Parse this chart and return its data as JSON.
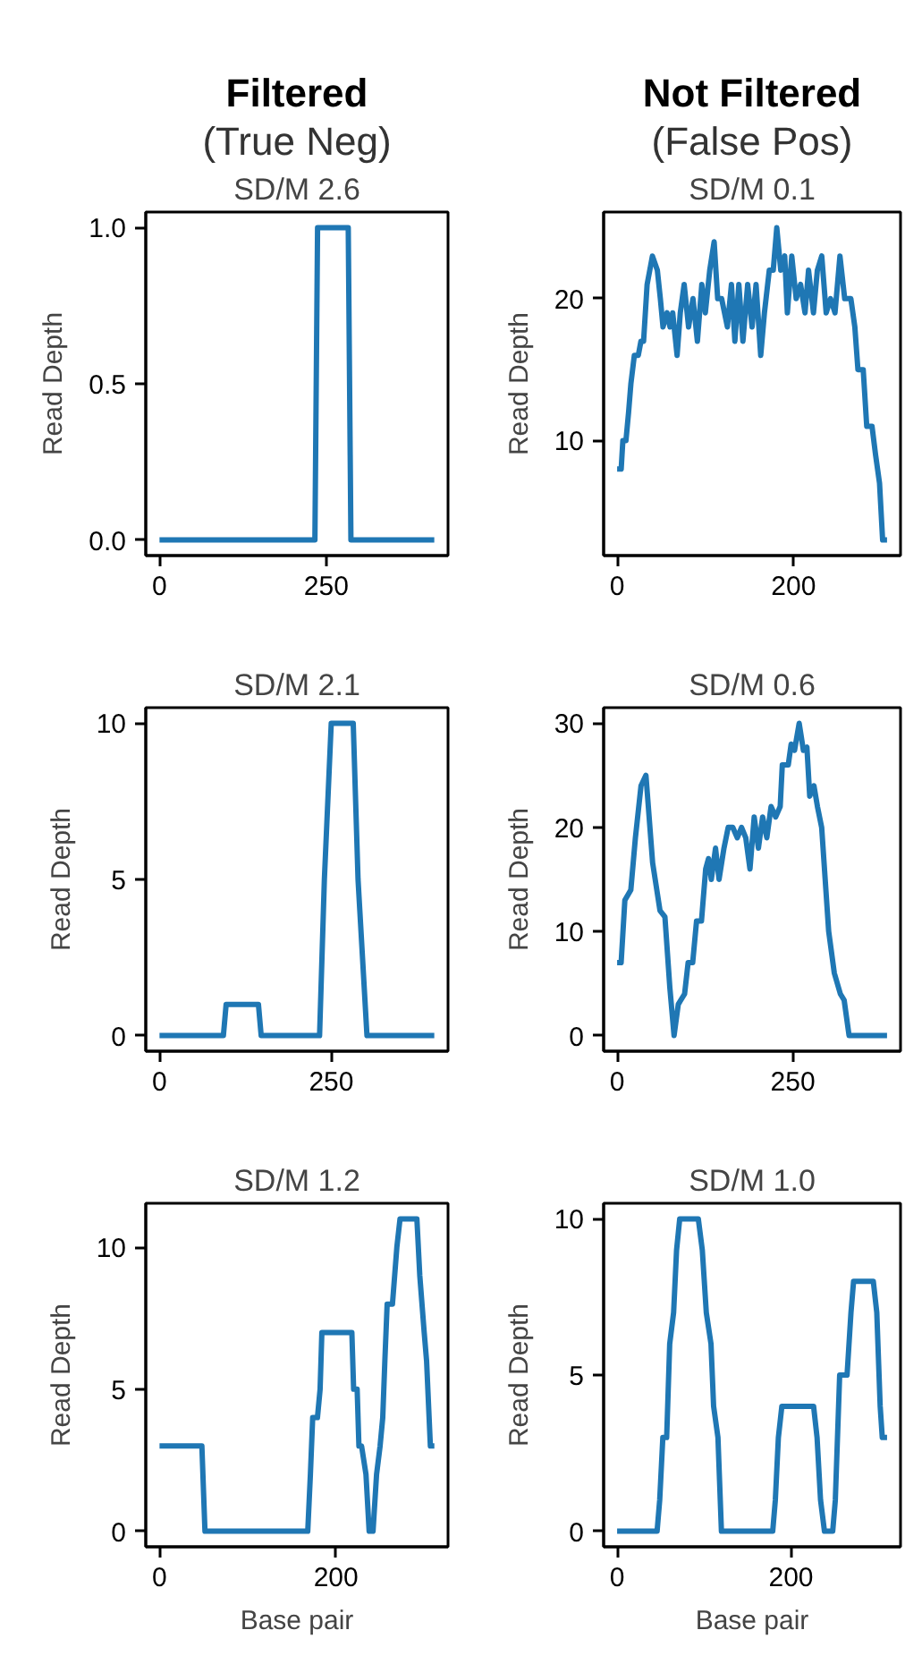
{
  "chart_data": [
    {
      "type": "line",
      "annotations": [
        "Filtered",
        "(True Neg)"
      ],
      "title": "SD/M 2.6",
      "ylabel": "Read Depth",
      "color": "#1f77b4",
      "x": [
        0,
        233,
        237,
        283,
        287,
        412
      ],
      "values": [
        0,
        0,
        1,
        1,
        0,
        0
      ],
      "xlim": [
        -20.6,
        432.6
      ],
      "ylim": [
        -0.05,
        1.05
      ],
      "xticks": [
        0,
        250
      ],
      "yticks": [
        {
          "value": 0,
          "label": "0.0"
        },
        {
          "value": 0.5,
          "label": "0.5"
        },
        {
          "value": 1,
          "label": "1.0"
        }
      ]
    },
    {
      "type": "line",
      "annotations": [
        "Not Filtered",
        "(False Pos)"
      ],
      "title": "SD/M 0.1",
      "ylabel": "Read Depth",
      "color": "#1f77b4",
      "x": [
        0,
        4.6,
        6.5,
        10,
        13,
        15.6,
        19.5,
        24,
        27,
        30,
        34,
        40,
        45.6,
        49,
        52,
        56.6,
        60,
        63,
        68,
        71.6,
        76,
        81,
        86,
        91,
        96,
        100,
        105,
        110,
        114,
        118.5,
        125,
        129.6,
        133.5,
        138,
        142.6,
        148,
        153,
        157.5,
        162.8,
        167,
        172.5,
        177,
        181,
        185.5,
        190,
        193,
        198,
        203,
        208,
        213,
        217,
        222.6,
        227,
        232,
        237,
        242,
        247,
        252.6,
        258,
        265,
        269.5,
        273,
        279,
        283,
        289,
        293,
        297.5,
        301,
        306
      ],
      "values": [
        8,
        8,
        10,
        10,
        12,
        14,
        16,
        16,
        17,
        17,
        21,
        23,
        22,
        20,
        18,
        19,
        18,
        19,
        16,
        19,
        21,
        18,
        20,
        17,
        21,
        19,
        22,
        24,
        20,
        20,
        18,
        21,
        17,
        21,
        17,
        21,
        18,
        21,
        16,
        19,
        22,
        22,
        25,
        22,
        23,
        19,
        23,
        20,
        21,
        19,
        22,
        19,
        22,
        23,
        19,
        20,
        19,
        23,
        20,
        20,
        18,
        15,
        15,
        11,
        11,
        9,
        7,
        3,
        3
      ],
      "xlim": [
        -15.3,
        321.3
      ],
      "ylim": [
        1.9,
        26.1
      ],
      "xticks": [
        0,
        200
      ],
      "yticks": [
        10,
        20
      ]
    },
    {
      "type": "line",
      "title": "SD/M 2.1",
      "ylabel": "Read Depth",
      "color": "#1f77b4",
      "x": [
        0,
        93,
        97,
        144,
        148,
        233,
        240,
        250,
        282,
        289,
        302,
        400
      ],
      "values": [
        0,
        0,
        1,
        1,
        0,
        0,
        5,
        10,
        10,
        5,
        0,
        0
      ],
      "xlim": [
        -20,
        420
      ],
      "ylim": [
        -0.5,
        10.5
      ],
      "xticks": [
        0,
        250
      ],
      "yticks": [
        0,
        5,
        10
      ]
    },
    {
      "type": "line",
      "title": "SD/M 0.6",
      "ylabel": "Read Depth",
      "color": "#1f77b4",
      "x": [
        0,
        5.7,
        11,
        19.5,
        26,
        34,
        41,
        50.5,
        61,
        68,
        75,
        81,
        87,
        96,
        101,
        107.5,
        113,
        120,
        126,
        130,
        134,
        140,
        145,
        152,
        158,
        164.5,
        171,
        177,
        183,
        189,
        195,
        201,
        207,
        213,
        219,
        225.6,
        232,
        235,
        243.5,
        247.6,
        252.4,
        259,
        265,
        270,
        274,
        280,
        285,
        291,
        301,
        309,
        317.6,
        323,
        330,
        384
      ],
      "values": [
        7,
        7,
        13,
        14,
        19,
        24,
        25,
        16.6,
        12,
        11.4,
        4.6,
        0,
        3,
        4,
        7,
        7,
        11,
        11,
        16,
        17,
        15,
        18,
        15,
        18,
        20,
        20,
        19,
        20,
        19,
        16,
        21,
        18,
        21,
        19,
        22,
        21,
        22,
        26,
        26,
        28,
        27.4,
        30,
        27.4,
        27.7,
        23,
        24,
        22,
        20,
        10,
        6,
        4,
        3.4,
        0,
        0
      ],
      "xlim": [
        -19.2,
        403.2
      ],
      "ylim": [
        -1.5,
        31.5
      ],
      "xticks": [
        0,
        250
      ],
      "yticks": [
        0,
        10,
        20,
        30
      ]
    },
    {
      "type": "line",
      "title": "SD/M 1.2",
      "xlabel": "Base pair",
      "ylabel": "Read Depth",
      "color": "#1f77b4",
      "x": [
        0,
        48,
        51.5,
        168,
        171,
        173.6,
        179,
        182,
        184,
        218,
        220,
        224,
        226,
        229,
        234,
        237.6,
        242,
        246,
        250,
        253,
        255.4,
        258,
        264,
        269,
        272.6,
        291.7,
        295,
        300,
        302.7,
        307,
        311.5
      ],
      "values": [
        3,
        3,
        0,
        0,
        2,
        4,
        4,
        5,
        7,
        7,
        5,
        5,
        3,
        3,
        2,
        0,
        0,
        2,
        3,
        4,
        6,
        8,
        8,
        10,
        11,
        11,
        9,
        7,
        6,
        3,
        3
      ],
      "xlim": [
        -15.6,
        327
      ],
      "ylim": [
        -0.55,
        11.55
      ],
      "xticks": [
        0,
        200
      ],
      "yticks": [
        0,
        5,
        10
      ]
    },
    {
      "type": "line",
      "title": "SD/M 1.0",
      "xlabel": "Base pair",
      "ylabel": "Read Depth",
      "color": "#1f77b4",
      "x": [
        0,
        46,
        49,
        52.6,
        57,
        60.5,
        65,
        68.4,
        72,
        93.4,
        98,
        102.6,
        108,
        111,
        116,
        120,
        179,
        182,
        185.5,
        189.5,
        226,
        230,
        234,
        238.5,
        248,
        251,
        256,
        264.5,
        269,
        272,
        294.7,
        298.7,
        302.6,
        305,
        310.5
      ],
      "values": [
        0,
        0,
        1,
        3,
        3,
        6,
        7,
        9,
        10,
        10,
        9,
        7,
        6,
        4,
        3,
        0,
        0,
        1,
        3,
        4,
        4,
        3,
        1,
        0,
        0,
        1,
        5,
        5,
        7,
        8,
        8,
        7,
        4,
        3,
        3
      ],
      "xlim": [
        -15.5,
        326
      ],
      "ylim": [
        -0.5,
        10.5
      ],
      "xticks": [
        0,
        200
      ],
      "yticks": [
        0,
        5,
        10
      ]
    }
  ]
}
